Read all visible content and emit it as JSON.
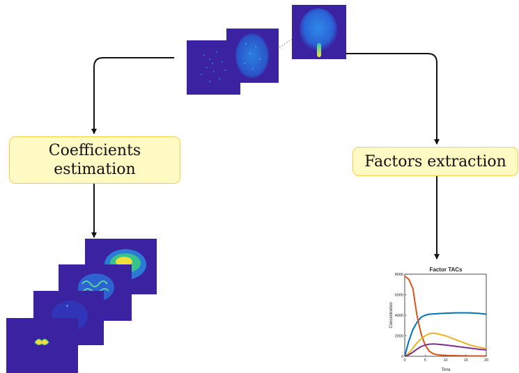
{
  "boxes": {
    "coefficients_line1": "Coefficients",
    "coefficients_line2": "estimation",
    "factors": "Factors extraction"
  },
  "colors": {
    "box_fill": "#fff9c4",
    "box_border": "#f2d04a",
    "image_background": "#3a22a0",
    "arrow": "#111111"
  },
  "chart_data": {
    "type": "line",
    "title": "Factor TACs",
    "xlabel": "Time",
    "ylabel": "Concentration",
    "xlim": [
      0,
      20
    ],
    "ylim": [
      0,
      8000
    ],
    "xticks": [
      "0",
      "5",
      "10",
      "15",
      "20"
    ],
    "yticks": [
      "0",
      "2000",
      "4000",
      "6000",
      "8000"
    ],
    "grid": false,
    "series": [
      {
        "color": "#0072bd",
        "x": [
          0,
          1,
          2,
          3,
          4,
          5,
          6,
          8,
          10,
          12,
          14,
          16,
          18,
          20
        ],
        "y": [
          0,
          1500,
          2600,
          3300,
          3800,
          4000,
          4100,
          4150,
          4200,
          4230,
          4240,
          4230,
          4180,
          4100
        ]
      },
      {
        "color": "#d95319",
        "x": [
          0,
          1,
          2,
          3,
          4,
          5,
          6,
          7,
          8,
          10,
          15,
          20
        ],
        "y": [
          7800,
          7500,
          6600,
          4000,
          2200,
          1100,
          500,
          250,
          150,
          80,
          40,
          30
        ]
      },
      {
        "color": "#edb120",
        "x": [
          0,
          1,
          2,
          3,
          4,
          5,
          6,
          7,
          8,
          10,
          12,
          14,
          16,
          18,
          20
        ],
        "y": [
          0,
          300,
          800,
          1300,
          1700,
          2000,
          2200,
          2250,
          2200,
          2000,
          1700,
          1400,
          1100,
          900,
          750
        ]
      },
      {
        "color": "#7e2f8e",
        "x": [
          0,
          1,
          2,
          3,
          4,
          5,
          6,
          7,
          8,
          10,
          12,
          14,
          16,
          18,
          20
        ],
        "y": [
          0,
          150,
          400,
          700,
          950,
          1100,
          1180,
          1200,
          1180,
          1100,
          1000,
          900,
          800,
          700,
          620
        ]
      }
    ]
  }
}
